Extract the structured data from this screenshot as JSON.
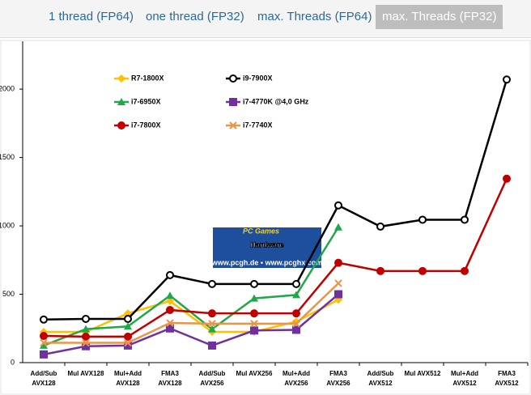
{
  "tabs": [
    "1 thread (FP64)",
    "one thread (FP32)",
    "max. Threads (FP64)",
    "max. Threads (FP32)"
  ],
  "active_tab": 3,
  "watermark": {
    "brand": "PC Games",
    "title": "Hardware",
    "url": "www.pcgh.de • www.pcghx.com"
  },
  "chart_data": {
    "type": "line",
    "categories": [
      "Add/Sub\nAVX128",
      "Mul  AVX128",
      "Mul+Add\nAVX128",
      "FMA3\nAVX128",
      "Add/Sub\nAVX256",
      "Mul AVX256",
      "Mul+Add\nAVX256",
      "FMA3\nAVX256",
      "Add/Sub\nAVX512",
      "Mul AVX512",
      "Mul+Add\nAVX512",
      "FMA3\nAVX512"
    ],
    "ylim": [
      0,
      2350
    ],
    "yticks": [
      0,
      500,
      1000,
      1500,
      2000
    ],
    "series": [
      {
        "name": "R7-1800X",
        "color": "#ffc000",
        "marker": "diamond",
        "values": [
          225,
          225,
          360,
          450,
          225,
          225,
          300,
          460,
          null,
          null,
          null,
          null
        ]
      },
      {
        "name": "i9-7900X",
        "color": "#000000",
        "marker": "open-circle",
        "values": [
          315,
          320,
          320,
          640,
          575,
          575,
          575,
          1150,
          995,
          1045,
          1045,
          2070
        ]
      },
      {
        "name": "i7-6950X",
        "color": "#1fa84a",
        "marker": "triangle",
        "values": [
          125,
          245,
          265,
          490,
          245,
          470,
          495,
          990,
          null,
          null,
          null,
          null
        ]
      },
      {
        "name": "i7-4770K @4,0 GHz",
        "color": "#7030a0",
        "marker": "square",
        "values": [
          60,
          120,
          125,
          250,
          125,
          235,
          240,
          500,
          null,
          null,
          null,
          null
        ]
      },
      {
        "name": "i7-7800X",
        "color": "#c00000",
        "marker": "circle",
        "values": [
          195,
          190,
          190,
          385,
          360,
          360,
          360,
          730,
          670,
          670,
          670,
          1345
        ]
      },
      {
        "name": "i7-7740X",
        "color": "#e8954a",
        "marker": "x",
        "values": [
          145,
          145,
          145,
          290,
          285,
          285,
          285,
          580,
          null,
          null,
          null,
          null
        ]
      }
    ]
  }
}
